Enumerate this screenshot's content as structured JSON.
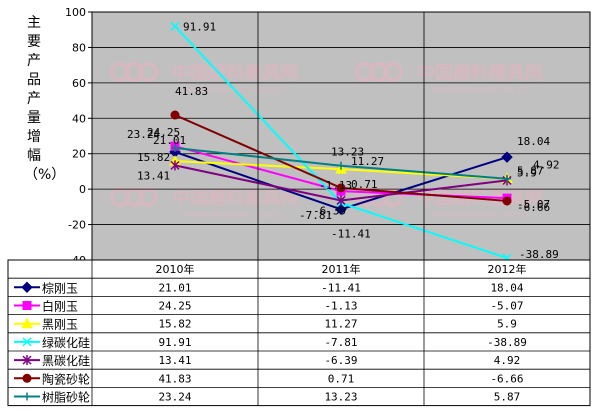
{
  "chart_data": {
    "type": "line",
    "ylabel": "主要产品产量增幅（%）",
    "ylim": [
      -40,
      100
    ],
    "yticks": [
      "100",
      "80",
      "60",
      "40",
      "20",
      "0",
      "-20",
      "-40"
    ],
    "categories": [
      "2010年",
      "2011年",
      "2012年"
    ],
    "grid": true,
    "legend": "table-below",
    "series": [
      {
        "name": "棕刚玉",
        "values": [
          21.01,
          -11.41,
          18.04
        ],
        "labels": [
          "21.01",
          "-11.41",
          "18.04"
        ],
        "color": "#000080",
        "marker": "diamond"
      },
      {
        "name": "白刚玉",
        "values": [
          24.25,
          -1.13,
          -5.07
        ],
        "labels": [
          "24.25",
          "-1.13",
          "-5.07"
        ],
        "color": "#ff00ff",
        "marker": "square"
      },
      {
        "name": "黑刚玉",
        "values": [
          15.82,
          11.27,
          5.9
        ],
        "labels": [
          "15.82",
          "11.27",
          "5.9"
        ],
        "color": "#ffff00",
        "marker": "triangle"
      },
      {
        "name": "绿碳化硅",
        "values": [
          91.91,
          -7.81,
          -38.89
        ],
        "labels": [
          "91.91",
          "-7.81",
          "-38.89"
        ],
        "color": "#00ffff",
        "marker": "x"
      },
      {
        "name": "黑碳化硅",
        "values": [
          13.41,
          -6.39,
          4.92
        ],
        "labels": [
          "13.41",
          "-6.39",
          "4.92"
        ],
        "color": "#800080",
        "marker": "star"
      },
      {
        "name": "陶瓷砂轮",
        "values": [
          41.83,
          0.71,
          -6.66
        ],
        "labels": [
          "41.83",
          "0.71",
          "-6.66"
        ],
        "color": "#800000",
        "marker": "circle"
      },
      {
        "name": "树脂砂轮",
        "values": [
          23.24,
          13.23,
          5.87
        ],
        "labels": [
          "23.24",
          "13.23",
          "5.87"
        ],
        "color": "#008080",
        "marker": "plus"
      }
    ]
  },
  "watermark": {
    "text": "中国磨料磨具网",
    "url": "www.abrasives.org.cn",
    "logo": "CCCA"
  },
  "colors": {
    "plot_bg": "#c0c0c0",
    "grid": "#000000",
    "watermark": "#e8b4c0"
  }
}
